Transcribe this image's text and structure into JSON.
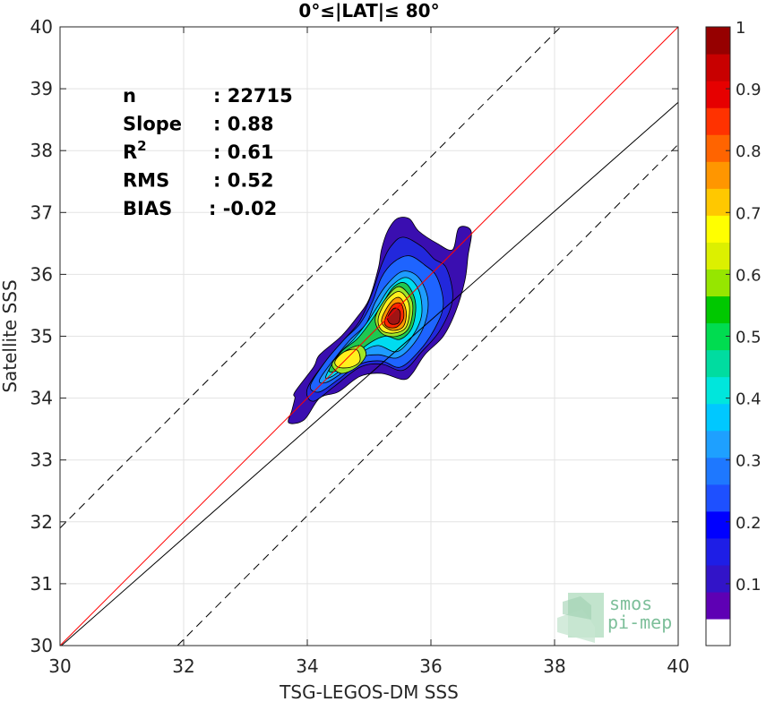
{
  "chart_data": {
    "type": "heatmap",
    "title": "0°≤|LAT|≤ 80°",
    "xlabel": "TSG-LEGOS-DM SSS",
    "ylabel": "Satellite SSS",
    "xlim": [
      30,
      40
    ],
    "ylim": [
      30,
      40
    ],
    "xticks": [
      "30",
      "32",
      "34",
      "36",
      "38",
      "40"
    ],
    "yticks": [
      "30",
      "31",
      "32",
      "33",
      "34",
      "35",
      "36",
      "37",
      "38",
      "39",
      "40"
    ],
    "grid": true,
    "stats": [
      {
        "label": "n",
        "value": ": 22715"
      },
      {
        "label": "Slope",
        "value": ": 0.88"
      },
      {
        "label": "R",
        "sup": "2",
        "value": ": 0.61"
      },
      {
        "label": "RMS",
        "value": ": 0.52"
      },
      {
        "label": "BIAS",
        "value": ": -0.02"
      }
    ],
    "lines": [
      {
        "kind": "identity",
        "color": "#ff0000",
        "slope": 1,
        "intercept": 0
      },
      {
        "kind": "regression",
        "color": "#000000",
        "slope": 0.88,
        "intercept": 3.58
      },
      {
        "kind": "upper-bound",
        "color": "#000000",
        "dash": true,
        "slope": 1,
        "intercept": 1.9
      },
      {
        "kind": "lower-bound",
        "color": "#000000",
        "dash": true,
        "slope": 1,
        "intercept": -1.9
      }
    ],
    "contour_levels": [
      {
        "level": 0.05,
        "color": "#3a0eb0",
        "pts": [
          [
            33.75,
            33.8
          ],
          [
            33.8,
            34.0
          ],
          [
            33.8,
            34.1
          ],
          [
            34.1,
            34.5
          ],
          [
            34.2,
            34.7
          ],
          [
            34.55,
            35.0
          ],
          [
            34.8,
            35.3
          ],
          [
            35.0,
            35.6
          ],
          [
            35.15,
            36.1
          ],
          [
            35.2,
            36.4
          ],
          [
            35.3,
            36.7
          ],
          [
            35.45,
            36.9
          ],
          [
            35.65,
            36.9
          ],
          [
            35.8,
            36.7
          ],
          [
            36.1,
            36.5
          ],
          [
            36.35,
            36.4
          ],
          [
            36.45,
            36.75
          ],
          [
            36.65,
            36.7
          ],
          [
            36.6,
            36.3
          ],
          [
            36.55,
            35.9
          ],
          [
            36.4,
            35.4
          ],
          [
            36.2,
            35.0
          ],
          [
            35.9,
            34.7
          ],
          [
            35.7,
            34.4
          ],
          [
            35.55,
            34.3
          ],
          [
            35.2,
            34.4
          ],
          [
            34.85,
            34.35
          ],
          [
            34.5,
            34.1
          ],
          [
            34.2,
            34.0
          ],
          [
            33.95,
            33.65
          ],
          [
            33.7,
            33.6
          ]
        ]
      },
      {
        "level": 0.1,
        "color": "#2228dc",
        "pts": [
          [
            34.0,
            34.15
          ],
          [
            34.3,
            34.6
          ],
          [
            34.6,
            34.95
          ],
          [
            34.85,
            35.25
          ],
          [
            35.05,
            35.7
          ],
          [
            35.2,
            36.15
          ],
          [
            35.35,
            36.45
          ],
          [
            35.55,
            36.6
          ],
          [
            35.85,
            36.45
          ],
          [
            36.05,
            36.25
          ],
          [
            36.25,
            36.1
          ],
          [
            36.35,
            35.6
          ],
          [
            36.15,
            35.1
          ],
          [
            35.85,
            34.75
          ],
          [
            35.55,
            34.45
          ],
          [
            35.2,
            34.55
          ],
          [
            34.85,
            34.5
          ],
          [
            34.45,
            34.2
          ],
          [
            34.1,
            33.95
          ]
        ]
      },
      {
        "level": 0.2,
        "color": "#1e64ff",
        "pts": [
          [
            34.05,
            34.2
          ],
          [
            34.3,
            34.6
          ],
          [
            34.6,
            34.95
          ],
          [
            34.85,
            35.2
          ],
          [
            35.05,
            35.55
          ],
          [
            35.2,
            35.95
          ],
          [
            35.4,
            36.2
          ],
          [
            35.65,
            36.3
          ],
          [
            35.9,
            36.15
          ],
          [
            36.1,
            35.95
          ],
          [
            36.2,
            35.5
          ],
          [
            36.05,
            35.1
          ],
          [
            35.8,
            34.75
          ],
          [
            35.5,
            34.5
          ],
          [
            35.2,
            34.6
          ],
          [
            34.85,
            34.55
          ],
          [
            34.5,
            34.3
          ],
          [
            34.2,
            34.1
          ]
        ]
      },
      {
        "level": 0.3,
        "color": "#1e9cff",
        "pts": [
          [
            34.2,
            34.3
          ],
          [
            34.45,
            34.65
          ],
          [
            34.7,
            34.95
          ],
          [
            34.95,
            35.2
          ],
          [
            35.1,
            35.55
          ],
          [
            35.3,
            35.85
          ],
          [
            35.55,
            36.05
          ],
          [
            35.8,
            35.95
          ],
          [
            35.95,
            35.6
          ],
          [
            35.9,
            35.2
          ],
          [
            35.7,
            34.85
          ],
          [
            35.45,
            34.65
          ],
          [
            35.15,
            34.7
          ],
          [
            34.85,
            34.65
          ],
          [
            34.55,
            34.4
          ],
          [
            34.3,
            34.25
          ]
        ]
      },
      {
        "level": 0.4,
        "color": "#00dcf0",
        "pts": [
          [
            34.3,
            34.35
          ],
          [
            34.5,
            34.7
          ],
          [
            34.75,
            34.95
          ],
          [
            34.95,
            35.2
          ],
          [
            35.15,
            35.5
          ],
          [
            35.35,
            35.8
          ],
          [
            35.6,
            35.95
          ],
          [
            35.8,
            35.75
          ],
          [
            35.85,
            35.35
          ],
          [
            35.7,
            35.0
          ],
          [
            35.45,
            34.75
          ],
          [
            35.15,
            34.85
          ],
          [
            34.9,
            34.75
          ],
          [
            34.6,
            34.5
          ],
          [
            34.4,
            34.35
          ]
        ]
      },
      {
        "level": 0.5,
        "color": "#1ec850",
        "pts": [
          [
            34.35,
            34.45
          ],
          [
            34.55,
            34.75
          ],
          [
            34.8,
            34.95
          ],
          [
            35.0,
            35.2
          ],
          [
            35.2,
            35.5
          ],
          [
            35.4,
            35.8
          ],
          [
            35.6,
            35.85
          ],
          [
            35.75,
            35.55
          ],
          [
            35.7,
            35.15
          ],
          [
            35.5,
            34.95
          ],
          [
            35.25,
            35.0
          ],
          [
            34.95,
            34.85
          ],
          [
            34.7,
            34.6
          ],
          [
            34.5,
            34.45
          ]
        ]
      },
      {
        "level": 0.6,
        "color": "#a0e628",
        "pts": [
          [
            34.4,
            34.55
          ],
          [
            34.6,
            34.75
          ],
          [
            34.85,
            34.85
          ],
          [
            34.95,
            34.7
          ],
          [
            34.8,
            34.5
          ],
          [
            34.55,
            34.4
          ]
        ]
      },
      {
        "level": 0.6,
        "color": "#a0e628",
        "pts": [
          [
            35.1,
            35.3
          ],
          [
            35.3,
            35.65
          ],
          [
            35.5,
            35.8
          ],
          [
            35.7,
            35.55
          ],
          [
            35.65,
            35.15
          ],
          [
            35.45,
            35.0
          ],
          [
            35.2,
            35.05
          ]
        ]
      },
      {
        "level": 0.7,
        "color": "#fff01e",
        "pts": [
          [
            34.45,
            34.6
          ],
          [
            34.6,
            34.75
          ],
          [
            34.8,
            34.78
          ],
          [
            34.85,
            34.6
          ],
          [
            34.7,
            34.5
          ],
          [
            34.5,
            34.5
          ]
        ]
      },
      {
        "level": 0.7,
        "color": "#fff01e",
        "pts": [
          [
            35.15,
            35.3
          ],
          [
            35.3,
            35.6
          ],
          [
            35.5,
            35.72
          ],
          [
            35.65,
            35.5
          ],
          [
            35.6,
            35.15
          ],
          [
            35.4,
            35.05
          ],
          [
            35.2,
            35.1
          ]
        ]
      },
      {
        "level": 0.8,
        "color": "#ff9600",
        "pts": [
          [
            35.2,
            35.25
          ],
          [
            35.35,
            35.55
          ],
          [
            35.5,
            35.62
          ],
          [
            35.6,
            35.4
          ],
          [
            35.55,
            35.15
          ],
          [
            35.35,
            35.1
          ]
        ]
      },
      {
        "level": 0.9,
        "color": "#ff2800",
        "pts": [
          [
            35.25,
            35.25
          ],
          [
            35.38,
            35.5
          ],
          [
            35.52,
            35.52
          ],
          [
            35.56,
            35.3
          ],
          [
            35.45,
            35.15
          ],
          [
            35.3,
            35.15
          ]
        ]
      },
      {
        "level": 1.0,
        "color": "#a01414",
        "pts": [
          [
            35.3,
            35.3
          ],
          [
            35.4,
            35.45
          ],
          [
            35.5,
            35.4
          ],
          [
            35.48,
            35.22
          ],
          [
            35.35,
            35.2
          ]
        ]
      }
    ],
    "colorbar": {
      "ticks": [
        "0.1",
        "0.2",
        "0.3",
        "0.4",
        "0.5",
        "0.6",
        "0.7",
        "0.8",
        "0.9",
        "1"
      ],
      "range": [
        0,
        1
      ],
      "colors": [
        "#ffffff",
        "#5e00b4",
        "#3214c8",
        "#1e1ee6",
        "#0000ff",
        "#1e50ff",
        "#1e78ff",
        "#1ea0ff",
        "#00c8ff",
        "#00e6dc",
        "#00dca0",
        "#00dc50",
        "#00c800",
        "#96e600",
        "#dcf000",
        "#ffff00",
        "#ffc800",
        "#ff9600",
        "#ff6400",
        "#ff3200",
        "#e60000",
        "#c80000",
        "#960000"
      ]
    }
  },
  "watermark": {
    "line1": "smos",
    "line2": "pi-mep"
  }
}
